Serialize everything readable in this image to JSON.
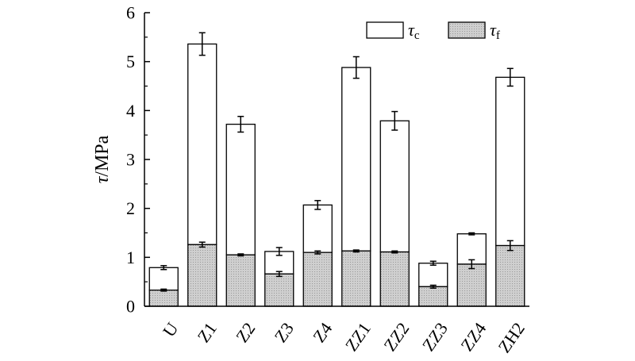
{
  "chart_data": {
    "type": "bar",
    "stacked": true,
    "categories": [
      "U",
      "Z1",
      "Z2",
      "Z3",
      "Z4",
      "ZZ1",
      "ZZ2",
      "ZZ3",
      "ZZ4",
      "ZH2"
    ],
    "series": [
      {
        "name": "τf",
        "symbol": "τ",
        "subscript": "f",
        "fill": "#cfcfcf",
        "values": [
          0.33,
          1.26,
          1.05,
          0.66,
          1.1,
          1.13,
          1.11,
          0.4,
          0.86,
          1.24
        ],
        "errors": [
          0.02,
          0.05,
          0.02,
          0.05,
          0.03,
          0.02,
          0.02,
          0.03,
          0.09,
          0.1
        ]
      },
      {
        "name": "τc",
        "symbol": "τ",
        "subscript": "c",
        "fill": "#ffffff",
        "totals": [
          0.79,
          5.36,
          3.72,
          1.12,
          2.07,
          4.88,
          3.79,
          0.88,
          1.48,
          4.68
        ],
        "errors": [
          0.04,
          0.23,
          0.16,
          0.08,
          0.09,
          0.22,
          0.19,
          0.04,
          0.02,
          0.18
        ]
      }
    ],
    "ylabel_symbol": "τ",
    "ylabel_unit": "/MPa",
    "xlabel": "",
    "ylim": [
      0,
      6
    ],
    "yticks": [
      "0",
      "1",
      "2",
      "3",
      "4",
      "5",
      "6"
    ],
    "grid": false,
    "legend_position": "top-right"
  }
}
